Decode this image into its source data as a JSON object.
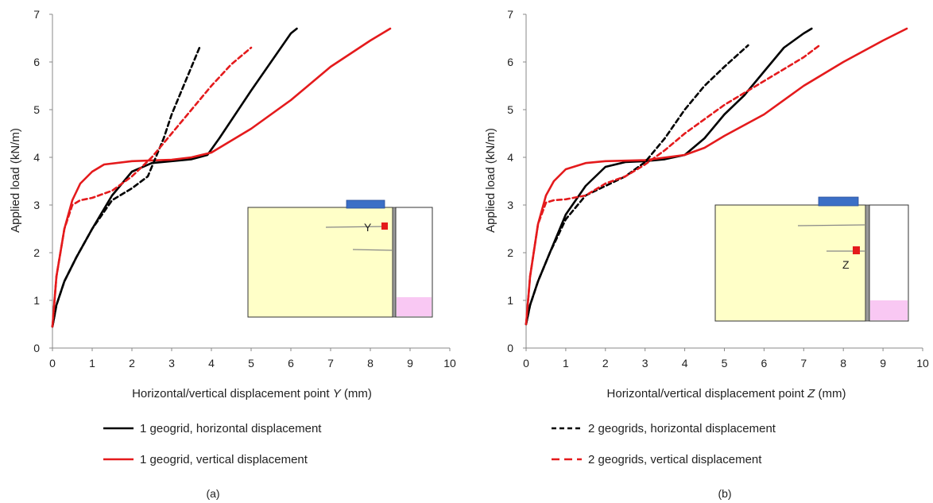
{
  "chart_data": [
    {
      "type": "line",
      "panel_label": "(a)",
      "xlabel_prefix": "Horizontal/vertical displacement point ",
      "xlabel_var": "Y",
      "xlabel_suffix": " (mm)",
      "ylabel": "Applied load (kN/m)",
      "xlim": [
        0,
        10
      ],
      "ylim": [
        0,
        7
      ],
      "xticks": [
        0,
        1,
        2,
        3,
        4,
        5,
        6,
        7,
        8,
        9,
        10
      ],
      "yticks": [
        0,
        1,
        2,
        3,
        4,
        5,
        6,
        7
      ],
      "inset_point_label": "Y",
      "legend": [
        "1 geogrid, horizontal displacement",
        "1 geogrid, vertical displacement"
      ],
      "series": [
        {
          "name": "1 geogrid, horizontal displacement",
          "color": "#000000",
          "dash": "solid",
          "x": [
            0,
            0.1,
            0.3,
            0.6,
            1.0,
            1.5,
            2.0,
            2.5,
            3.0,
            3.5,
            3.9,
            4.2,
            4.6,
            5.0,
            5.5,
            6.0,
            6.15
          ],
          "y": [
            0.45,
            0.9,
            1.4,
            1.9,
            2.5,
            3.2,
            3.7,
            3.88,
            3.92,
            3.96,
            4.05,
            4.4,
            4.9,
            5.4,
            6.0,
            6.6,
            6.7
          ]
        },
        {
          "name": "1 geogrid, vertical displacement",
          "color": "#e41a1c",
          "dash": "solid",
          "x": [
            0,
            0.1,
            0.3,
            0.5,
            0.7,
            1.0,
            1.3,
            2.0,
            3.0,
            3.5,
            4.0,
            4.5,
            5.0,
            6.0,
            7.0,
            8.0,
            8.5
          ],
          "y": [
            0.45,
            1.5,
            2.5,
            3.1,
            3.45,
            3.7,
            3.85,
            3.92,
            3.95,
            4.0,
            4.1,
            4.35,
            4.6,
            5.2,
            5.9,
            6.45,
            6.7
          ]
        },
        {
          "name": "",
          "color": "#000000",
          "dash": "dashed",
          "x": [
            0,
            0.1,
            0.3,
            0.6,
            1.0,
            1.5,
            2.0,
            2.4,
            2.6,
            2.8,
            3.0,
            3.2,
            3.5,
            3.7
          ],
          "y": [
            0.45,
            0.9,
            1.4,
            1.9,
            2.5,
            3.1,
            3.35,
            3.6,
            4.0,
            4.4,
            4.9,
            5.3,
            5.9,
            6.3
          ]
        },
        {
          "name": "",
          "color": "#e41a1c",
          "dash": "dashed",
          "x": [
            0,
            0.1,
            0.3,
            0.5,
            0.7,
            1.0,
            1.5,
            2.0,
            2.5,
            3.0,
            3.5,
            4.0,
            4.5,
            5.0
          ],
          "y": [
            0.45,
            1.5,
            2.5,
            3.0,
            3.1,
            3.15,
            3.3,
            3.6,
            4.0,
            4.5,
            5.0,
            5.5,
            5.95,
            6.3
          ]
        }
      ]
    },
    {
      "type": "line",
      "panel_label": "(b)",
      "xlabel_prefix": "Horizontal/vertical displacement point ",
      "xlabel_var": "Z",
      "xlabel_suffix": " (mm)",
      "ylabel": "Applied load (kN/m)",
      "xlim": [
        0,
        10
      ],
      "ylim": [
        0,
        7
      ],
      "xticks": [
        0,
        1,
        2,
        3,
        4,
        5,
        6,
        7,
        8,
        9,
        10
      ],
      "yticks": [
        0,
        1,
        2,
        3,
        4,
        5,
        6,
        7
      ],
      "inset_point_label": "Z",
      "legend": [
        "2 geogrids, horizontal displacement",
        "2 geogrids, vertical displacement"
      ],
      "series": [
        {
          "name": "",
          "color": "#000000",
          "dash": "solid",
          "x": [
            0,
            0.1,
            0.3,
            0.6,
            1.0,
            1.5,
            2.0,
            2.5,
            3.0,
            3.5,
            4.0,
            4.5,
            5.0,
            5.5,
            6.0,
            6.5,
            7.0,
            7.2
          ],
          "y": [
            0.5,
            0.9,
            1.4,
            2.0,
            2.8,
            3.4,
            3.8,
            3.9,
            3.92,
            3.96,
            4.05,
            4.4,
            4.9,
            5.3,
            5.8,
            6.3,
            6.6,
            6.7
          ]
        },
        {
          "name": "",
          "color": "#e41a1c",
          "dash": "solid",
          "x": [
            0,
            0.1,
            0.3,
            0.5,
            0.7,
            1.0,
            1.5,
            2.0,
            3.0,
            4.0,
            4.5,
            5.0,
            6.0,
            7.0,
            8.0,
            9.0,
            9.6
          ],
          "y": [
            0.5,
            1.5,
            2.6,
            3.2,
            3.5,
            3.75,
            3.88,
            3.92,
            3.94,
            4.05,
            4.2,
            4.45,
            4.9,
            5.5,
            6.0,
            6.45,
            6.7
          ]
        },
        {
          "name": "2 geogrids, horizontal displacement",
          "color": "#000000",
          "dash": "dashed",
          "x": [
            0,
            0.1,
            0.3,
            0.6,
            1.0,
            1.5,
            2.0,
            2.5,
            3.0,
            3.5,
            4.0,
            4.5,
            5.0,
            5.6
          ],
          "y": [
            0.5,
            0.9,
            1.4,
            2.0,
            2.7,
            3.2,
            3.4,
            3.6,
            3.9,
            4.4,
            5.0,
            5.5,
            5.9,
            6.35
          ]
        },
        {
          "name": "2 geogrids, vertical displacement",
          "color": "#e41a1c",
          "dash": "dashed",
          "x": [
            0,
            0.1,
            0.3,
            0.5,
            0.7,
            1.0,
            1.5,
            2.0,
            2.5,
            3.0,
            3.5,
            4.0,
            5.0,
            6.0,
            7.0,
            7.4
          ],
          "y": [
            0.5,
            1.5,
            2.6,
            3.05,
            3.1,
            3.12,
            3.2,
            3.45,
            3.6,
            3.85,
            4.15,
            4.5,
            5.1,
            5.6,
            6.1,
            6.35
          ]
        }
      ]
    }
  ]
}
